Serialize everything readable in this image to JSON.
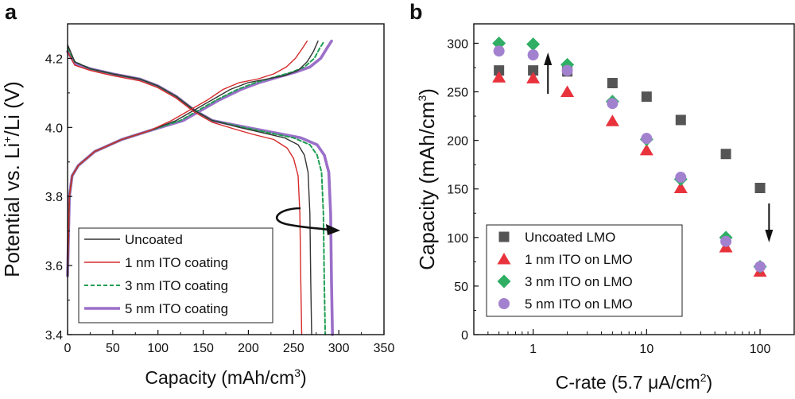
{
  "chart_data": [
    {
      "panel": "a",
      "type": "line",
      "title": "",
      "xlabel": "Capacity (mAh/cm3)",
      "xlabel_parts": [
        "Capacity (mAh/cm",
        "3",
        ")"
      ],
      "ylabel": "Potential vs. Li+/Li (V)",
      "ylabel_parts": [
        "Potential vs. Li",
        "+",
        "/Li (V)"
      ],
      "xlim": [
        0,
        350
      ],
      "ylim": [
        3.4,
        4.3
      ],
      "xticks": [
        0,
        50,
        100,
        150,
        200,
        250,
        300,
        350
      ],
      "yticks": [
        3.4,
        3.6,
        3.8,
        4.0,
        4.2
      ],
      "ytick_labels": [
        "3.4",
        "3.6",
        "3.8",
        "4.0",
        "4.2"
      ],
      "legend_position": "bottom-left",
      "annotation": "curved arrow pointing to increasing discharge capacity with ITO thickness",
      "series": [
        {
          "name": "Uncoated",
          "color": "#333333",
          "dash": "solid",
          "width": 1.4,
          "charge": [
            [
              0,
              3.57
            ],
            [
              2,
              3.8
            ],
            [
              5,
              3.86
            ],
            [
              12,
              3.89
            ],
            [
              30,
              3.93
            ],
            [
              60,
              3.965
            ],
            [
              90,
              3.99
            ],
            [
              120,
              4.02
            ],
            [
              140,
              4.05
            ],
            [
              160,
              4.08
            ],
            [
              180,
              4.11
            ],
            [
              200,
              4.13
            ],
            [
              220,
              4.14
            ],
            [
              240,
              4.15
            ],
            [
              255,
              4.165
            ],
            [
              265,
              4.19
            ],
            [
              272,
              4.22
            ],
            [
              277,
              4.25
            ]
          ],
          "discharge": [
            [
              0,
              4.24
            ],
            [
              8,
              4.19
            ],
            [
              25,
              4.17
            ],
            [
              50,
              4.155
            ],
            [
              80,
              4.14
            ],
            [
              100,
              4.12
            ],
            [
              120,
              4.09
            ],
            [
              140,
              4.05
            ],
            [
              160,
              4.02
            ],
            [
              190,
              4.0
            ],
            [
              215,
              3.985
            ],
            [
              240,
              3.97
            ],
            [
              255,
              3.95
            ],
            [
              262,
              3.92
            ],
            [
              266,
              3.87
            ],
            [
              268,
              3.75
            ],
            [
              269,
              3.55
            ],
            [
              270,
              3.4
            ]
          ]
        },
        {
          "name": "1 nm ITO coating",
          "color": "#d62b2b",
          "dash": "solid",
          "width": 1.4,
          "charge": [
            [
              0,
              3.57
            ],
            [
              2,
              3.8
            ],
            [
              5,
              3.86
            ],
            [
              12,
              3.89
            ],
            [
              30,
              3.93
            ],
            [
              60,
              3.965
            ],
            [
              90,
              3.99
            ],
            [
              115,
              4.02
            ],
            [
              135,
              4.05
            ],
            [
              155,
              4.08
            ],
            [
              172,
              4.11
            ],
            [
              190,
              4.13
            ],
            [
              210,
              4.14
            ],
            [
              228,
              4.155
            ],
            [
              242,
              4.175
            ],
            [
              252,
              4.2
            ],
            [
              260,
              4.23
            ],
            [
              265,
              4.25
            ]
          ],
          "discharge": [
            [
              0,
              4.22
            ],
            [
              8,
              4.18
            ],
            [
              25,
              4.165
            ],
            [
              50,
              4.15
            ],
            [
              80,
              4.135
            ],
            [
              100,
              4.115
            ],
            [
              120,
              4.085
            ],
            [
              140,
              4.045
            ],
            [
              160,
              4.015
            ],
            [
              185,
              3.995
            ],
            [
              205,
              3.98
            ],
            [
              228,
              3.965
            ],
            [
              243,
              3.94
            ],
            [
              250,
              3.91
            ],
            [
              255,
              3.86
            ],
            [
              257,
              3.75
            ],
            [
              258,
              3.55
            ],
            [
              259,
              3.4
            ]
          ]
        },
        {
          "name": "3 nm ITO coating",
          "color": "#1f9e52",
          "dash": "dashed",
          "width": 2.0,
          "charge": [
            [
              0,
              3.57
            ],
            [
              2,
              3.8
            ],
            [
              5,
              3.86
            ],
            [
              12,
              3.89
            ],
            [
              30,
              3.93
            ],
            [
              60,
              3.965
            ],
            [
              90,
              3.99
            ],
            [
              125,
              4.02
            ],
            [
              145,
              4.05
            ],
            [
              165,
              4.08
            ],
            [
              188,
              4.11
            ],
            [
              208,
              4.13
            ],
            [
              228,
              4.145
            ],
            [
              248,
              4.16
            ],
            [
              262,
              4.175
            ],
            [
              273,
              4.2
            ],
            [
              279,
              4.23
            ],
            [
              284,
              4.25
            ]
          ],
          "discharge": [
            [
              0,
              4.23
            ],
            [
              8,
              4.19
            ],
            [
              25,
              4.17
            ],
            [
              50,
              4.155
            ],
            [
              80,
              4.14
            ],
            [
              100,
              4.12
            ],
            [
              120,
              4.09
            ],
            [
              140,
              4.05
            ],
            [
              160,
              4.02
            ],
            [
              195,
              4.0
            ],
            [
              222,
              3.985
            ],
            [
              250,
              3.97
            ],
            [
              268,
              3.95
            ],
            [
              276,
              3.92
            ],
            [
              281,
              3.87
            ],
            [
              283,
              3.75
            ],
            [
              284,
              3.55
            ],
            [
              285,
              3.4
            ]
          ]
        },
        {
          "name": "5 nm ITO coating",
          "color": "#9b6fc9",
          "dash": "solid",
          "width": 3.6,
          "charge": [
            [
              0,
              3.57
            ],
            [
              2,
              3.8
            ],
            [
              5,
              3.86
            ],
            [
              12,
              3.89
            ],
            [
              30,
              3.93
            ],
            [
              60,
              3.965
            ],
            [
              90,
              3.99
            ],
            [
              128,
              4.02
            ],
            [
              148,
              4.05
            ],
            [
              168,
              4.08
            ],
            [
              192,
              4.11
            ],
            [
              212,
              4.13
            ],
            [
              232,
              4.145
            ],
            [
              252,
              4.16
            ],
            [
              268,
              4.175
            ],
            [
              280,
              4.2
            ],
            [
              287,
              4.23
            ],
            [
              292,
              4.25
            ]
          ],
          "discharge": [
            [
              0,
              4.22
            ],
            [
              8,
              4.185
            ],
            [
              25,
              4.17
            ],
            [
              50,
              4.155
            ],
            [
              80,
              4.14
            ],
            [
              100,
              4.12
            ],
            [
              120,
              4.09
            ],
            [
              140,
              4.05
            ],
            [
              160,
              4.02
            ],
            [
              198,
              4.0
            ],
            [
              228,
              3.985
            ],
            [
              258,
              3.97
            ],
            [
              276,
              3.95
            ],
            [
              284,
              3.92
            ],
            [
              289,
              3.87
            ],
            [
              291,
              3.75
            ],
            [
              292,
              3.55
            ],
            [
              293,
              3.4
            ]
          ]
        }
      ]
    },
    {
      "panel": "b",
      "type": "scatter",
      "title": "",
      "xlabel": "C-rate (5.7 μA/cm2)",
      "xlabel_parts": [
        "C-rate (5.7 μA/cm",
        "2",
        ")"
      ],
      "ylabel": "Capacity (mAh/cm3)",
      "ylabel_parts": [
        "Capacity (mAh/cm",
        "3",
        ")"
      ],
      "xscale": "log",
      "xlim": [
        0.3,
        200
      ],
      "ylim": [
        0,
        320
      ],
      "xticks": [
        1,
        10,
        100
      ],
      "xtick_labels": [
        "1",
        "10",
        "100"
      ],
      "yticks": [
        0,
        50,
        100,
        150,
        200,
        250,
        300
      ],
      "legend_position": "bottom-left",
      "annotations": [
        "upward arrow near C-rate 1",
        "downward arrow near C-rate 100"
      ],
      "x": [
        0.5,
        1,
        2,
        5,
        10,
        20,
        50,
        100
      ],
      "series": [
        {
          "name": "Uncoated LMO",
          "marker": "square",
          "color": "#555555",
          "values": [
            272,
            272,
            271,
            259,
            245,
            221,
            186,
            151
          ]
        },
        {
          "name": "1 nm ITO on LMO",
          "marker": "triangle",
          "color": "#e8323c",
          "values": [
            265,
            264,
            250,
            220,
            190,
            151,
            90,
            65
          ]
        },
        {
          "name": "3 nm ITO on LMO",
          "marker": "diamond",
          "color": "#2fae64",
          "values": [
            300,
            299,
            278,
            240,
            201,
            160,
            100,
            70
          ]
        },
        {
          "name": "5 nm ITO on LMO",
          "marker": "circle",
          "color": "#a282cf",
          "values": [
            292,
            288,
            272,
            238,
            202,
            162,
            96,
            70
          ]
        }
      ]
    }
  ]
}
